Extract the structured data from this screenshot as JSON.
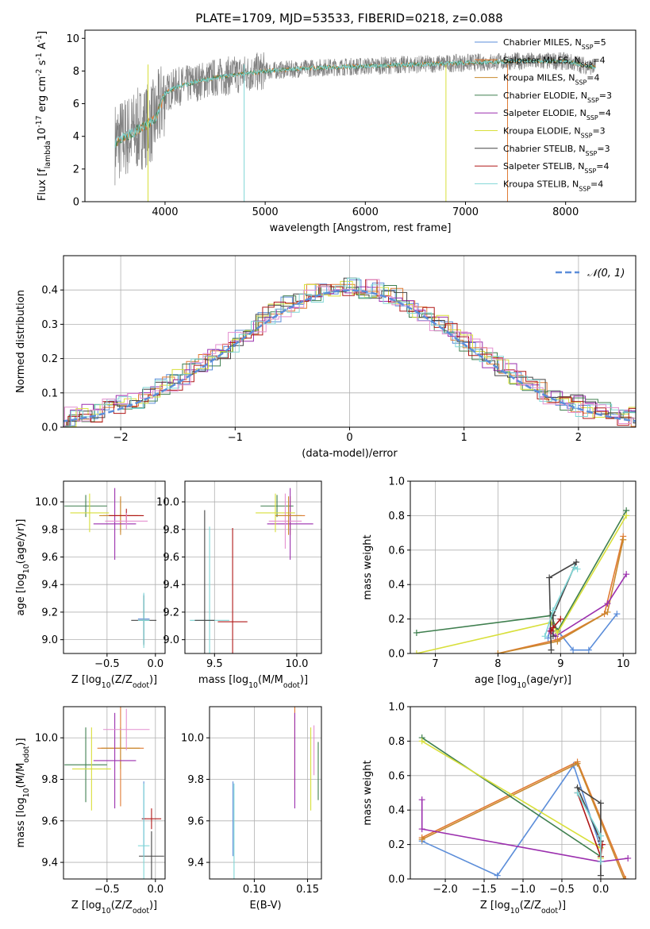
{
  "figure": {
    "title": "PLATE=1709, MJD=53533, FIBERID=0218, z=0.088"
  },
  "legend_entries": [
    {
      "name": "Chabrier MILES, N$_{SSP}$=5",
      "color": "#5b8dd9"
    },
    {
      "name": "Salpeter MILES, N$_{SSP}$=4",
      "color": "#e07a33"
    },
    {
      "name": "Kroupa MILES, N$_{SSP}$=4",
      "color": "#c9892e"
    },
    {
      "name": "Chabrier ELODIE, N$_{SSP}$=3",
      "color": "#3f7f4f"
    },
    {
      "name": "Salpeter ELODIE, N$_{SSP}$=4",
      "color": "#9b2fae"
    },
    {
      "name": "Kroupa ELODIE, N$_{SSP}$=3",
      "color": "#d8df3a"
    },
    {
      "name": "Chabrier STELIB, N$_{SSP}$=3",
      "color": "#444444"
    },
    {
      "name": "Salpeter STELIB, N$_{SSP}$=4",
      "color": "#b01818"
    },
    {
      "name": "Kroupa STELIB, N$_{SSP}$=4",
      "color": "#7fd6d6"
    }
  ],
  "chart_data": [
    {
      "id": "spectrum",
      "type": "line",
      "xlabel": "wavelength [Angstrom, rest frame]",
      "ylabel": "Flux [f$_\\lambda$10$^{-17}$ erg cm$^{-2}$ s$^{-1}$ A$^{-1}$]",
      "xlim": [
        3200,
        8700
      ],
      "ylim": [
        0,
        10.5
      ],
      "xticks": [
        4000,
        5000,
        6000,
        7000,
        8000
      ],
      "yticks": [
        0,
        2,
        4,
        6,
        8,
        10
      ],
      "grid": false,
      "legend": "right",
      "continuum": {
        "x": [
          3500,
          3700,
          3900,
          4000,
          4100,
          4300,
          4500,
          5000,
          5500,
          6000,
          6500,
          7000,
          7500,
          8000,
          8300
        ],
        "y": [
          3.6,
          4.3,
          5.0,
          6.6,
          7.0,
          7.3,
          7.6,
          8.0,
          8.2,
          8.3,
          8.4,
          8.5,
          8.6,
          8.6,
          8.2
        ]
      }
    },
    {
      "id": "residuals",
      "type": "histogram",
      "xlabel": "(data-model)/error",
      "ylabel": "Normed distribution",
      "xlim": [
        -2.5,
        2.5
      ],
      "ylim": [
        0,
        0.5
      ],
      "xticks": [
        -2,
        -1,
        0,
        1,
        2
      ],
      "yticks": [
        0.0,
        0.1,
        0.2,
        0.3,
        0.4
      ],
      "grid": true,
      "legend": "top-right",
      "gaussian_label": "$\\mathcal{N}(0,1)$"
    },
    {
      "id": "age_vs_Z",
      "type": "errorbar",
      "xlabel": "Z [log$_{10}$(Z/Z$_\\odot$)]",
      "ylabel": "age  [log$_{10}$(age/yr)]",
      "xlim": [
        -0.95,
        0.1
      ],
      "ylim": [
        8.9,
        10.15
      ],
      "xticks": [
        -0.5,
        0.0
      ],
      "yticks": [
        9.0,
        9.2,
        9.4,
        9.6,
        9.8,
        10.0
      ],
      "grid": true,
      "points": [
        {
          "s": 0,
          "x": -0.12,
          "y": 9.15,
          "xe": 0.06,
          "ye": 0.18
        },
        {
          "s": 1,
          "x": -0.36,
          "y": 9.9,
          "xe": 0.18,
          "ye": 0.12
        },
        {
          "s": 2,
          "x": -0.36,
          "y": 9.9,
          "xe": 0.22,
          "ye": 0.14
        },
        {
          "s": 3,
          "x": -0.72,
          "y": 9.97,
          "xe": 0.22,
          "ye": 0.08
        },
        {
          "s": 4,
          "x": -0.42,
          "y": 9.84,
          "xe": 0.22,
          "ye": 0.26
        },
        {
          "s": 5,
          "x": -0.68,
          "y": 9.92,
          "xe": 0.2,
          "ye": 0.14
        },
        {
          "s": 6,
          "x": -0.12,
          "y": 9.14,
          "xe": 0.13,
          "ye": 0.18
        },
        {
          "s": 7,
          "x": -0.3,
          "y": 9.9,
          "xe": 0.18,
          "ye": 0.05
        },
        {
          "s": 8,
          "x": -0.12,
          "y": 9.14,
          "xe": 0.06,
          "ye": 0.2
        },
        {
          "s": 9,
          "x": -0.3,
          "y": 9.86,
          "xe": 0.22,
          "ye": 0.06
        }
      ]
    },
    {
      "id": "age_vs_mass",
      "type": "errorbar",
      "xlabel": "mass [log$_{10}$(M/M$_\\odot$)]",
      "ylabel": "",
      "xlim": [
        9.32,
        10.15
      ],
      "ylim": [
        8.9,
        10.15
      ],
      "xticks": [
        9.5,
        10.0
      ],
      "yticks": [
        9.0,
        9.2,
        9.4,
        9.6,
        9.8,
        10.0
      ],
      "grid": true,
      "points": [
        {
          "s": 8,
          "x": 9.47,
          "y": 9.14,
          "xe": 0.12,
          "ye": 0.68
        },
        {
          "s": 1,
          "x": 9.96,
          "y": 9.9,
          "xe": 0.09,
          "ye": 0.14
        },
        {
          "s": 3,
          "x": 9.88,
          "y": 9.97,
          "xe": 0.1,
          "ye": 0.08
        },
        {
          "s": 4,
          "x": 9.96,
          "y": 9.84,
          "xe": 0.14,
          "ye": 0.26
        },
        {
          "s": 5,
          "x": 9.87,
          "y": 9.92,
          "xe": 0.12,
          "ye": 0.14
        },
        {
          "s": 6,
          "x": 9.44,
          "y": 9.14,
          "xe": 0.06,
          "ye": 0.8
        },
        {
          "s": 7,
          "x": 9.61,
          "y": 9.13,
          "xe": 0.09,
          "ye": 0.68
        },
        {
          "s": 9,
          "x": 9.93,
          "y": 9.86,
          "xe": 0.1,
          "ye": 0.2
        },
        {
          "s": 2,
          "x": 9.95,
          "y": 9.9,
          "xe": 0.08,
          "ye": 0.14
        }
      ]
    },
    {
      "id": "weight_vs_age",
      "type": "line",
      "xlabel": "age  [log$_{10}$(age/yr)]",
      "ylabel": "mass weight",
      "xlim": [
        6.6,
        10.2
      ],
      "ylim": [
        0,
        1.0
      ],
      "xticks": [
        7,
        8,
        9,
        10
      ],
      "yticks": [
        0.0,
        0.2,
        0.4,
        0.6,
        0.8,
        1.0
      ],
      "grid": true,
      "series": [
        {
          "s": 0,
          "x": [
            9.9,
            9.45,
            9.2,
            8.85,
            8.8
          ],
          "y": [
            0.23,
            0.02,
            0.02,
            0.18,
            0.09
          ]
        },
        {
          "s": 1,
          "x": [
            8.0,
            8.95,
            9.7,
            10.0
          ],
          "y": [
            0.0,
            0.08,
            0.23,
            0.68
          ]
        },
        {
          "s": 2,
          "x": [
            8.0,
            8.95,
            9.75,
            10.0
          ],
          "y": [
            0.0,
            0.07,
            0.24,
            0.66
          ]
        },
        {
          "s": 3,
          "x": [
            6.7,
            8.85,
            8.95,
            10.05
          ],
          "y": [
            0.12,
            0.22,
            0.13,
            0.83
          ]
        },
        {
          "s": 4,
          "x": [
            8.82,
            8.92,
            9.75,
            10.05
          ],
          "y": [
            0.13,
            0.1,
            0.29,
            0.46
          ]
        },
        {
          "s": 5,
          "x": [
            6.7,
            8.85,
            8.95,
            10.05
          ],
          "y": [
            0.0,
            0.18,
            0.12,
            0.8
          ]
        },
        {
          "s": 6,
          "x": [
            8.85,
            8.82,
            9.25,
            8.88,
            8.88
          ],
          "y": [
            0.02,
            0.44,
            0.53,
            0.22,
            0.1
          ]
        },
        {
          "s": 7,
          "x": [
            8.85,
            8.88,
            9.0
          ],
          "y": [
            0.13,
            0.15,
            0.2
          ]
        },
        {
          "s": 8,
          "x": [
            8.75,
            8.88,
            9.22,
            9.27
          ],
          "y": [
            0.1,
            0.25,
            0.5,
            0.49
          ]
        }
      ]
    },
    {
      "id": "mass_vs_Z",
      "type": "errorbar",
      "xlabel": "Z [log$_{10}$(Z/Z$_\\odot$)]",
      "ylabel": "mass [log$_{10}$(M/M$_\\odot$)]",
      "xlim": [
        -0.95,
        0.1
      ],
      "ylim": [
        9.32,
        10.15
      ],
      "xticks": [
        -0.5,
        0.0
      ],
      "yticks": [
        9.4,
        9.6,
        9.8,
        10.0
      ],
      "grid": true,
      "points": [
        {
          "s": 0,
          "x": -0.12,
          "y": 9.61,
          "xe": 0.02,
          "ye": 0.18
        },
        {
          "s": 1,
          "x": -0.36,
          "y": 9.95,
          "xe": 0.24,
          "ye": 0.28
        },
        {
          "s": 2,
          "x": -0.36,
          "y": 9.95,
          "xe": 0.2,
          "ye": 0.1
        },
        {
          "s": 3,
          "x": -0.72,
          "y": 9.87,
          "xe": 0.22,
          "ye": 0.18
        },
        {
          "s": 4,
          "x": -0.42,
          "y": 9.89,
          "xe": 0.22,
          "ye": 0.23
        },
        {
          "s": 5,
          "x": -0.66,
          "y": 9.85,
          "xe": 0.2,
          "ye": 0.2
        },
        {
          "s": 6,
          "x": -0.04,
          "y": 9.43,
          "xe": 0.13,
          "ye": 0.12
        },
        {
          "s": 7,
          "x": -0.04,
          "y": 9.61,
          "xe": 0.1,
          "ye": 0.05
        },
        {
          "s": 8,
          "x": -0.12,
          "y": 9.48,
          "xe": 0.06,
          "ye": 0.3
        },
        {
          "s": 9,
          "x": -0.3,
          "y": 10.04,
          "xe": 0.24,
          "ye": 0.1
        }
      ]
    },
    {
      "id": "mass_vs_ebv",
      "type": "errorbar",
      "xlabel": "E(B-V)",
      "ylabel": "",
      "xlim": [
        0.058,
        0.163
      ],
      "ylim": [
        9.32,
        10.15
      ],
      "xticks": [
        0.1,
        0.15
      ],
      "yticks": [
        9.4,
        9.6,
        9.8,
        10.0
      ],
      "grid": true,
      "points": [
        {
          "s": 0,
          "x": 0.08,
          "y": 9.61,
          "xe": 0,
          "ye": 0.18
        },
        {
          "s": 8,
          "x": 0.081,
          "y": 9.48,
          "xe": 0,
          "ye": 0.3
        },
        {
          "s": 1,
          "x": 0.138,
          "y": 9.95,
          "xe": 0,
          "ye": 0.2
        },
        {
          "s": 4,
          "x": 0.138,
          "y": 9.89,
          "xe": 0,
          "ye": 0.23
        },
        {
          "s": 5,
          "x": 0.153,
          "y": 9.85,
          "xe": 0,
          "ye": 0.2
        },
        {
          "s": 9,
          "x": 0.156,
          "y": 9.94,
          "xe": 0,
          "ye": 0.12
        },
        {
          "s": 3,
          "x": 0.16,
          "y": 9.84,
          "xe": 0,
          "ye": 0.14
        }
      ]
    },
    {
      "id": "weight_vs_Z",
      "type": "line",
      "xlabel": "Z [log$_{10}$(Z/Z$_\\odot$)]",
      "ylabel": "mass weight",
      "xlim": [
        -2.45,
        0.45
      ],
      "ylim": [
        0,
        1.0
      ],
      "xticks": [
        -2.0,
        -1.5,
        -1.0,
        -0.5,
        0.0
      ],
      "yticks": [
        0.0,
        0.2,
        0.4,
        0.6,
        0.8,
        1.0
      ],
      "grid": true,
      "series": [
        {
          "s": 0,
          "x": [
            -2.3,
            -1.33,
            -0.35,
            0.0
          ],
          "y": [
            0.22,
            0.02,
            0.66,
            0.18
          ]
        },
        {
          "s": 1,
          "x": [
            -2.3,
            -0.3,
            0.32
          ],
          "y": [
            0.24,
            0.68,
            0.0
          ]
        },
        {
          "s": 2,
          "x": [
            -2.3,
            -0.3,
            0.3
          ],
          "y": [
            0.23,
            0.67,
            0.0
          ]
        },
        {
          "s": 3,
          "x": [
            -2.3,
            0.0,
            0.0
          ],
          "y": [
            0.82,
            0.13,
            0.2
          ]
        },
        {
          "s": 4,
          "x": [
            -2.3,
            -2.3,
            0.0,
            0.35
          ],
          "y": [
            0.46,
            0.29,
            0.1,
            0.12
          ]
        },
        {
          "s": 5,
          "x": [
            -2.3,
            0.0,
            0.0
          ],
          "y": [
            0.8,
            0.18,
            0.12
          ]
        },
        {
          "s": 6,
          "x": [
            0.0,
            0.0,
            -0.3,
            0.0
          ],
          "y": [
            0.02,
            0.44,
            0.53,
            0.22
          ]
        },
        {
          "s": 7,
          "x": [
            -0.3,
            0.0,
            0.02
          ],
          "y": [
            0.5,
            0.13,
            0.2
          ]
        },
        {
          "s": 8,
          "x": [
            -0.3,
            0.0,
            0.0
          ],
          "y": [
            0.5,
            0.25,
            0.1
          ]
        }
      ]
    }
  ]
}
